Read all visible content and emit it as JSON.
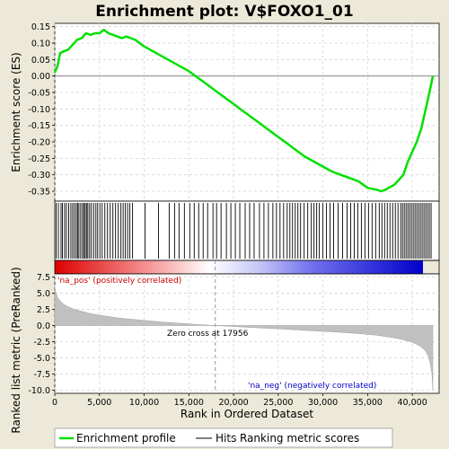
{
  "chart_data": {
    "type": "line",
    "title": "Enrichment plot: V$FOXO1_01",
    "xlabel": "Rank in Ordered Dataset",
    "xlim": [
      0,
      43000
    ],
    "x_ticks": [
      0,
      5000,
      10000,
      15000,
      20000,
      25000,
      30000,
      35000,
      40000
    ],
    "x_tick_labels": [
      "0",
      "5,000",
      "10,000",
      "15,000",
      "20,000",
      "25,000",
      "30,000",
      "35,000",
      "40,000"
    ],
    "enrichment_panel": {
      "ylabel": "Enrichment score (ES)",
      "ylim": [
        -0.38,
        0.16
      ],
      "y_ticks": [
        0.15,
        0.1,
        0.05,
        0.0,
        -0.05,
        -0.1,
        -0.15,
        -0.2,
        -0.25,
        -0.3,
        -0.35
      ],
      "y_tick_labels": [
        "0.15",
        "0.10",
        "0.05",
        "0.00",
        "-0.05",
        "-0.10",
        "-0.15",
        "-0.20",
        "-0.25",
        "-0.30",
        "-0.35"
      ],
      "grid": true,
      "series": [
        {
          "name": "Enrichment profile",
          "color": "#00e000",
          "x": [
            0,
            300,
            600,
            1000,
            1500,
            2000,
            2500,
            3000,
            3500,
            4000,
            4500,
            5000,
            5500,
            6000,
            6500,
            7000,
            7500,
            8000,
            8500,
            9000,
            10000,
            11000,
            12000,
            13000,
            14000,
            15000,
            16000,
            17000,
            18000,
            19000,
            20000,
            21000,
            22000,
            23000,
            24000,
            25000,
            26000,
            27000,
            28000,
            29000,
            30000,
            31000,
            32000,
            33000,
            34000,
            35000,
            36000,
            36500,
            37000,
            38000,
            39000,
            39500,
            40000,
            40500,
            41000,
            41500,
            42000,
            42300
          ],
          "y": [
            0.01,
            0.03,
            0.07,
            0.075,
            0.08,
            0.095,
            0.11,
            0.115,
            0.13,
            0.125,
            0.13,
            0.13,
            0.14,
            0.13,
            0.125,
            0.12,
            0.115,
            0.12,
            0.115,
            0.11,
            0.09,
            0.075,
            0.06,
            0.045,
            0.03,
            0.015,
            -0.005,
            -0.025,
            -0.045,
            -0.065,
            -0.085,
            -0.105,
            -0.125,
            -0.145,
            -0.165,
            -0.185,
            -0.205,
            -0.225,
            -0.245,
            -0.26,
            -0.275,
            -0.29,
            -0.3,
            -0.31,
            -0.32,
            -0.34,
            -0.345,
            -0.35,
            -0.345,
            -0.33,
            -0.3,
            -0.26,
            -0.23,
            -0.2,
            -0.16,
            -0.1,
            -0.04,
            0.0
          ]
        }
      ]
    },
    "hits_panel": {
      "series_name": "Hits",
      "line_color": "#000000",
      "hit_positions": [
        150,
        400,
        700,
        850,
        1100,
        1300,
        1550,
        1800,
        2000,
        2200,
        2400,
        2550,
        2700,
        2900,
        3100,
        3250,
        3400,
        3550,
        3700,
        3900,
        4100,
        4350,
        4600,
        4800,
        5050,
        5300,
        5600,
        5900,
        6200,
        6500,
        6800,
        7100,
        7400,
        7650,
        7900,
        8150,
        8400,
        8700,
        10100,
        11600,
        12800,
        13400,
        13900,
        14500,
        15100,
        15600,
        16100,
        16600,
        17100,
        17700,
        18100,
        18600,
        19200,
        19700,
        20200,
        20700,
        21300,
        21800,
        22300,
        22900,
        23400,
        23900,
        24400,
        24800,
        25200,
        25600,
        26000,
        26300,
        26600,
        26900,
        27200,
        27500,
        27900,
        28300,
        28700,
        29000,
        29300,
        29600,
        30000,
        30400,
        30800,
        31200,
        31700,
        32200,
        32700,
        33100,
        33500,
        33900,
        34300,
        34700,
        35100,
        35500,
        35900,
        36300,
        36600,
        36900,
        37200,
        37500,
        37800,
        38100,
        38400,
        38700,
        38900,
        39100,
        39300,
        39500,
        39700,
        39900,
        40100,
        40300,
        40500,
        40700,
        40900,
        41100,
        41300,
        41500,
        41700,
        41900,
        42100
      ]
    },
    "ranked_metric_panel": {
      "ylabel": "Ranked list metric (PreRanked)",
      "ylim": [
        -10.5,
        8.0
      ],
      "y_ticks": [
        7.5,
        5.0,
        2.5,
        0.0,
        -2.5,
        -5.0,
        -7.5,
        -10.0
      ],
      "y_tick_labels": [
        "7.5",
        "5.0",
        "2.5",
        "0.0",
        "-2.5",
        "-5.0",
        "-7.5",
        "-10.0"
      ],
      "series_name": "Ranking metric scores",
      "fill_color": "#c0c0c0",
      "x": [
        0,
        100,
        300,
        600,
        1000,
        1500,
        2000,
        3000,
        4000,
        5000,
        6000,
        7000,
        8000,
        10000,
        12000,
        14000,
        16000,
        17956,
        20000,
        22000,
        25000,
        28000,
        30000,
        32000,
        34000,
        36000,
        37000,
        38000,
        39000,
        40000,
        40500,
        41000,
        41500,
        41800,
        42000,
        42200,
        42300
      ],
      "y": [
        6.0,
        5.2,
        4.4,
        3.8,
        3.3,
        2.9,
        2.6,
        2.2,
        1.85,
        1.6,
        1.4,
        1.2,
        1.05,
        0.8,
        0.55,
        0.35,
        0.15,
        0.0,
        -0.15,
        -0.3,
        -0.5,
        -0.75,
        -0.9,
        -1.05,
        -1.25,
        -1.5,
        -1.7,
        -1.9,
        -2.2,
        -2.6,
        -2.9,
        -3.3,
        -4.0,
        -4.8,
        -5.8,
        -7.5,
        -10.0
      ],
      "zero_cross_rank": 17956,
      "zero_cross_label": "Zero cross at 17956",
      "pos_label": "'na_pos' (positively correlated)",
      "neg_label": "'na_neg' (negatively correlated)",
      "pos_color": "#cc0000",
      "neg_color": "#0000cc"
    },
    "legend": {
      "placement": "bottom",
      "items": [
        {
          "name": "Enrichment profile",
          "color": "#00e000"
        },
        {
          "name": "Hits",
          "color": "#000000"
        },
        {
          "name": "Ranking metric scores",
          "color": "#c0c0c0"
        }
      ]
    }
  }
}
